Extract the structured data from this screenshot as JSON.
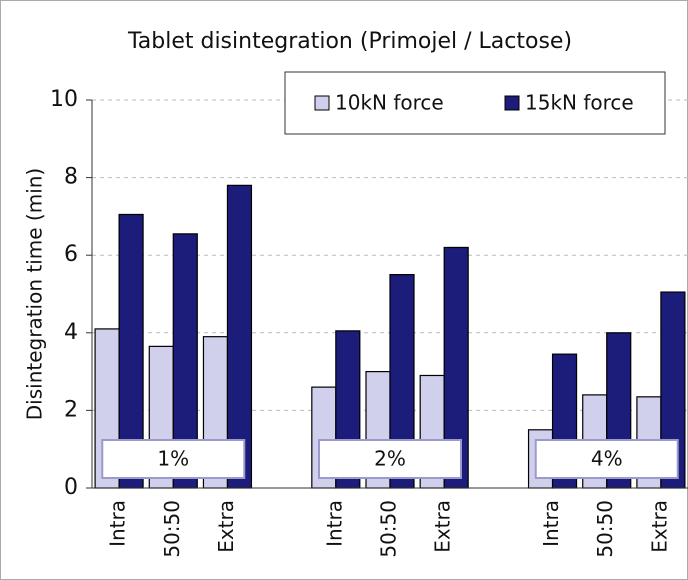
{
  "chart_data": {
    "type": "bar",
    "title": "Tablet disintegration (Primojel / Lactose)",
    "y_label": "Disintegration time (min)",
    "categories": [
      "Intra",
      "50:50",
      "Extra",
      null,
      "Intra",
      "50:50",
      "Extra",
      null,
      "Intra",
      "50:50",
      "Extra"
    ],
    "group_labels": [
      "1%",
      "2%",
      "4%"
    ],
    "series": [
      {
        "name": "10kN force",
        "color": "#d0d0ec",
        "values": [
          4.1,
          3.65,
          3.9,
          null,
          2.6,
          3.0,
          2.9,
          null,
          1.5,
          2.4,
          2.35
        ]
      },
      {
        "name": "15kN force",
        "color": "#1c1c7a",
        "values": [
          7.05,
          6.55,
          7.8,
          null,
          4.05,
          5.5,
          6.2,
          null,
          3.45,
          4.0,
          5.05
        ]
      }
    ],
    "ylim": [
      0,
      10
    ],
    "yticks": [
      0,
      2,
      4,
      6,
      8,
      10
    ],
    "grid": true,
    "legend": "top-right"
  }
}
